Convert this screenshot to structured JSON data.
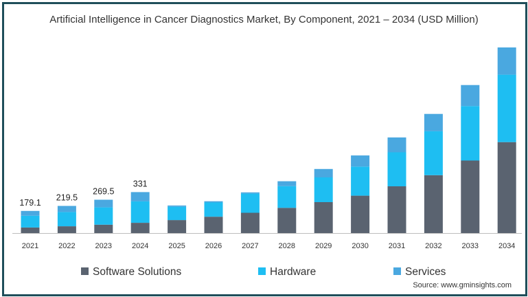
{
  "chart_data": {
    "type": "bar",
    "stacked": true,
    "title": "Artificial Intelligence in Cancer Diagnostics Market, By Component, 2021 – 2034 (USD Million)",
    "categories": [
      "2021",
      "2022",
      "2023",
      "2024",
      "2025",
      "2026",
      "2027",
      "2028",
      "2029",
      "2030",
      "2031",
      "2032",
      "2033",
      "2034"
    ],
    "series": [
      {
        "name": "Software Solutions",
        "color": "#5a6370",
        "values": [
          45,
          55,
          68,
          83,
          105,
          132,
          164,
          204,
          250,
          302,
          378,
          468,
          586,
          735
        ]
      },
      {
        "name": "Hardware",
        "color": "#1ebef2",
        "values": [
          95,
          115,
          140,
          173,
          108,
          115,
          155,
          175,
          200,
          235,
          275,
          355,
          440,
          545
        ]
      },
      {
        "name": "Services",
        "color": "#4aa8e0",
        "values": [
          39.1,
          49.5,
          61.5,
          75,
          10,
          10,
          10,
          40,
          68,
          90,
          120,
          140,
          170,
          220
        ]
      }
    ],
    "data_labels": [
      "179.1",
      "219.5",
      "269.5",
      "331"
    ],
    "ylim": [
      0,
      1550
    ],
    "legend": "bottom",
    "grid": false
  },
  "source": "Source: www.gminsights.com"
}
